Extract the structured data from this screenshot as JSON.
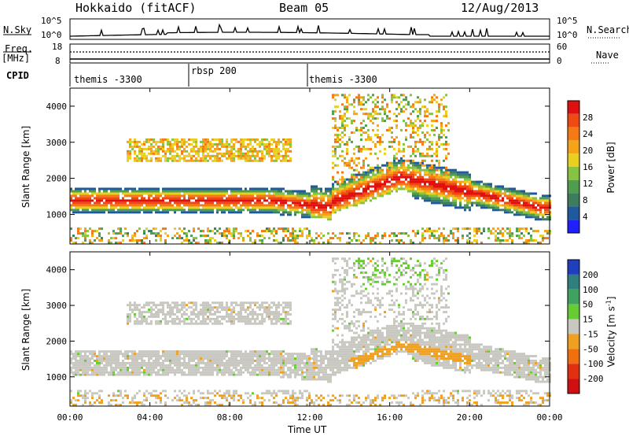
{
  "header": {
    "title": "Hokkaido (fitACF)",
    "beam": "Beam 05",
    "date": "12/Aug/2013"
  },
  "panels": {
    "nsky_label": "N.Sky",
    "nsearch_label": "N.Search",
    "freq_label": "Freq.",
    "freq_unit": "[MHz]",
    "nave_label": "Nave",
    "cpid_label": "CPID",
    "nsky_ticks": [
      "10^5",
      "10^0"
    ],
    "nsearch_ticks": [
      "10^5",
      "10^0"
    ],
    "freq_ticks": [
      "18",
      "8"
    ],
    "nave_ticks": [
      "60",
      "0"
    ],
    "cpid_segments": [
      "themis -3300",
      "rbsp 200",
      "themis -3300"
    ]
  },
  "chart_data": [
    {
      "type": "heatmap",
      "ylabel": "Slant Range [km]",
      "yticks": [
        "1000",
        "2000",
        "3000",
        "4000"
      ],
      "ylim": [
        180,
        4500
      ],
      "xlim": [
        "00:00",
        "24:00"
      ],
      "colorbar": {
        "label": "Power [dB]",
        "ticks": [
          "4",
          "8",
          "12",
          "16",
          "20",
          "24",
          "28"
        ],
        "range": [
          0,
          30
        ],
        "colors": [
          "#2020ff",
          "#205a9e",
          "#3b7d5c",
          "#4f9e4f",
          "#86c340",
          "#e8cf20",
          "#f5a41a",
          "#f57a16",
          "#f04a14",
          "#e01010"
        ]
      },
      "bands": [
        {
          "name": "main-band",
          "level": "high",
          "range_km": [
            1000,
            1650
          ]
        },
        {
          "name": "upper-band",
          "level": "medium",
          "range_km": [
            2500,
            3100
          ]
        },
        {
          "name": "arc-band",
          "level": "high",
          "range_km": [
            1600,
            2300
          ]
        }
      ]
    },
    {
      "type": "heatmap",
      "ylabel": "Slant Range [km]",
      "yticks": [
        "1000",
        "2000",
        "3000",
        "4000"
      ],
      "ylim": [
        180,
        4500
      ],
      "xlim": [
        "00:00",
        "24:00"
      ],
      "colorbar": {
        "label": "Velocity [m s-1]",
        "ticks": [
          "200",
          "100",
          "50",
          "15",
          "-15",
          "-50",
          "-100",
          "-200"
        ],
        "range": [
          -250,
          250
        ],
        "colors": [
          "#1f3fbf",
          "#2f7f7f",
          "#3fa35f",
          "#66cc33",
          "#c8c8c0",
          "#f0a020",
          "#f07010",
          "#e03010",
          "#d01010"
        ]
      }
    }
  ],
  "xaxis": {
    "ticks": [
      "00:00",
      "04:00",
      "08:00",
      "12:00",
      "16:00",
      "20:00",
      "00:00"
    ],
    "label": "Time UT"
  }
}
